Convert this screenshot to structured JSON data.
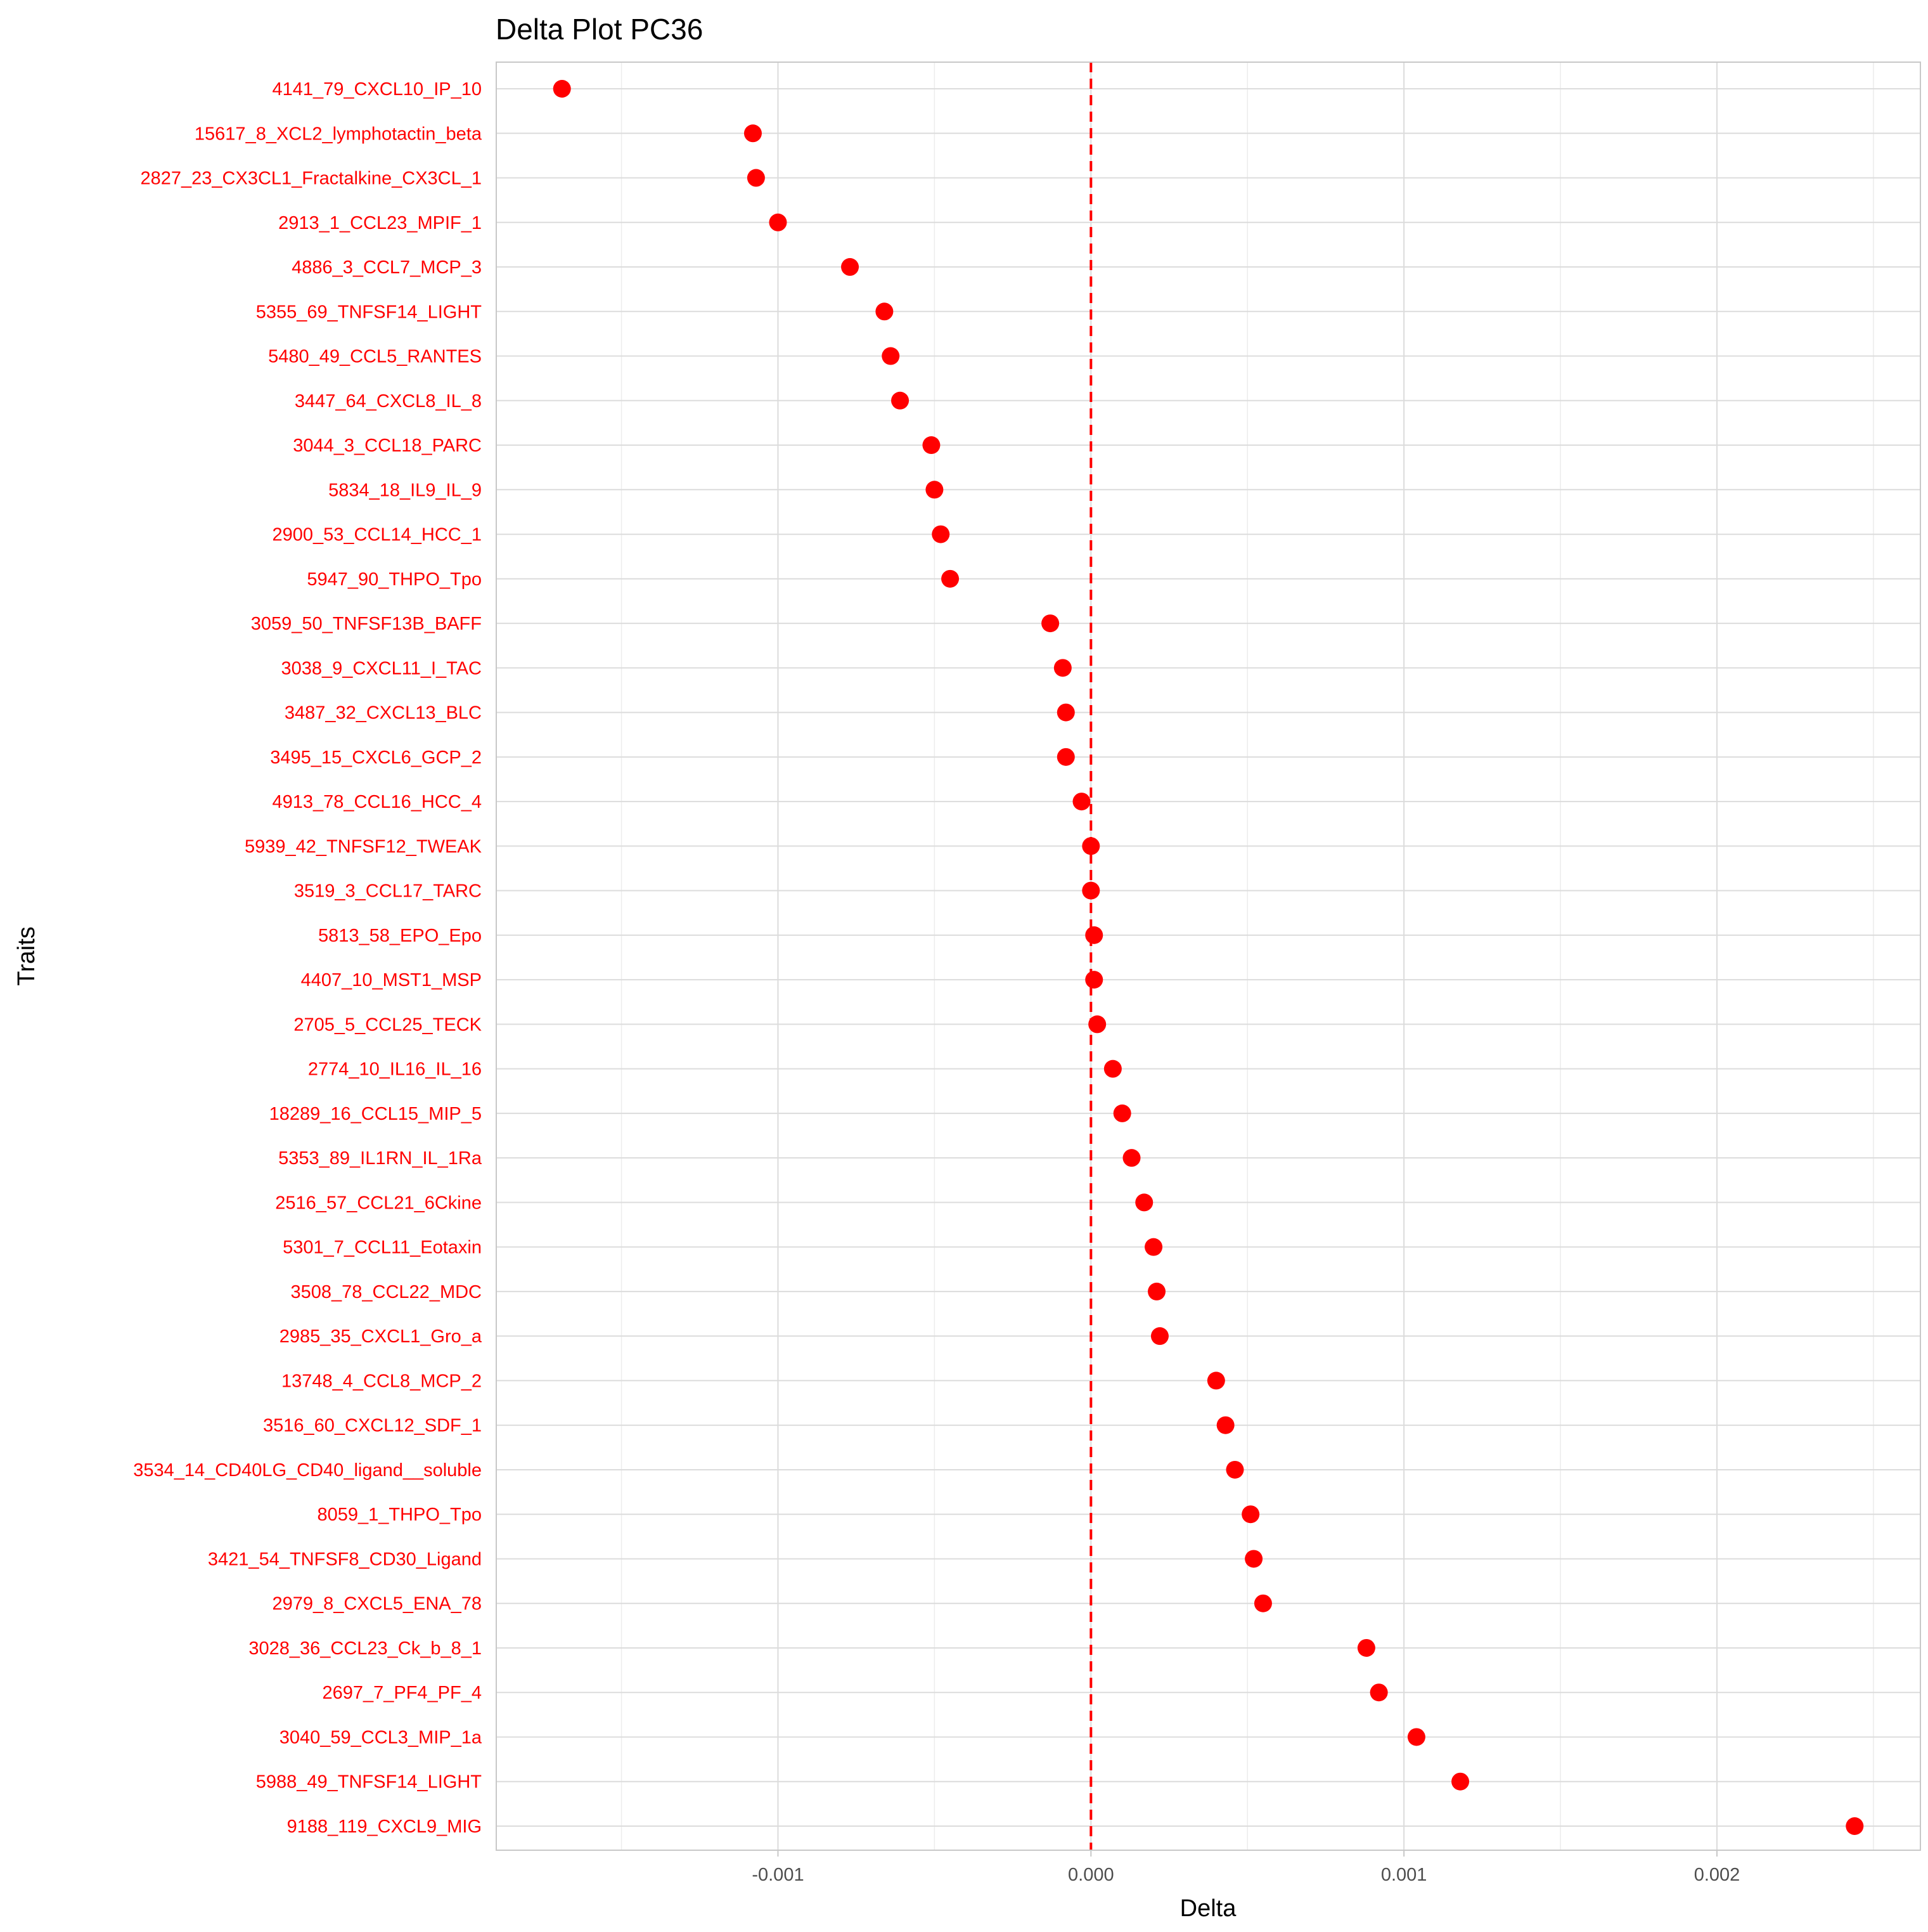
{
  "chart_data": {
    "type": "scatter",
    "title": "Delta Plot PC36",
    "xlabel": "Delta",
    "ylabel": "Traits",
    "xlim": [
      -0.0019,
      0.00265
    ],
    "xticks": [
      -0.001,
      0.0,
      0.001,
      0.002
    ],
    "xtick_labels": [
      "-0.001",
      "0.000",
      "0.001",
      "0.002"
    ],
    "reference_line": {
      "x": 0,
      "style": "dashed",
      "color": "#ff0000"
    },
    "point_color": "#ff0000",
    "label_color": "#ff0000",
    "grid": true,
    "points": [
      {
        "trait": "4141_79_CXCL10_IP_10",
        "delta": -0.00169
      },
      {
        "trait": "15617_8_XCL2_lymphotactin_beta",
        "delta": -0.00108
      },
      {
        "trait": "2827_23_CX3CL1_Fractalkine_CX3CL_1",
        "delta": -0.00107
      },
      {
        "trait": "2913_1_CCL23_MPIF_1",
        "delta": -0.001
      },
      {
        "trait": "4886_3_CCL7_MCP_3",
        "delta": -0.00077
      },
      {
        "trait": "5355_69_TNFSF14_LIGHT",
        "delta": -0.00066
      },
      {
        "trait": "5480_49_CCL5_RANTES",
        "delta": -0.00064
      },
      {
        "trait": "3447_64_CXCL8_IL_8",
        "delta": -0.00061
      },
      {
        "trait": "3044_3_CCL18_PARC",
        "delta": -0.00051
      },
      {
        "trait": "5834_18_IL9_IL_9",
        "delta": -0.0005
      },
      {
        "trait": "2900_53_CCL14_HCC_1",
        "delta": -0.00048
      },
      {
        "trait": "5947_90_THPO_Tpo",
        "delta": -0.00045
      },
      {
        "trait": "3059_50_TNFSF13B_BAFF",
        "delta": -0.00013
      },
      {
        "trait": "3038_9_CXCL11_I_TAC",
        "delta": -9e-05
      },
      {
        "trait": "3487_32_CXCL13_BLC",
        "delta": -8e-05
      },
      {
        "trait": "3495_15_CXCL6_GCP_2",
        "delta": -8e-05
      },
      {
        "trait": "4913_78_CCL16_HCC_4",
        "delta": -3e-05
      },
      {
        "trait": "5939_42_TNFSF12_TWEAK",
        "delta": 0.0
      },
      {
        "trait": "3519_3_CCL17_TARC",
        "delta": 0.0
      },
      {
        "trait": "5813_58_EPO_Epo",
        "delta": 1e-05
      },
      {
        "trait": "4407_10_MST1_MSP",
        "delta": 1e-05
      },
      {
        "trait": "2705_5_CCL25_TECK",
        "delta": 2e-05
      },
      {
        "trait": "2774_10_IL16_IL_16",
        "delta": 7e-05
      },
      {
        "trait": "18289_16_CCL15_MIP_5",
        "delta": 0.0001
      },
      {
        "trait": "5353_89_IL1RN_IL_1Ra",
        "delta": 0.00013
      },
      {
        "trait": "2516_57_CCL21_6Ckine",
        "delta": 0.00017
      },
      {
        "trait": "5301_7_CCL11_Eotaxin",
        "delta": 0.0002
      },
      {
        "trait": "3508_78_CCL22_MDC",
        "delta": 0.00021
      },
      {
        "trait": "2985_35_CXCL1_Gro_a",
        "delta": 0.00022
      },
      {
        "trait": "13748_4_CCL8_MCP_2",
        "delta": 0.0004
      },
      {
        "trait": "3516_60_CXCL12_SDF_1",
        "delta": 0.00043
      },
      {
        "trait": "3534_14_CD40LG_CD40_ligand__soluble",
        "delta": 0.00046
      },
      {
        "trait": "8059_1_THPO_Tpo",
        "delta": 0.00051
      },
      {
        "trait": "3421_54_TNFSF8_CD30_Ligand",
        "delta": 0.00052
      },
      {
        "trait": "2979_8_CXCL5_ENA_78",
        "delta": 0.00055
      },
      {
        "trait": "3028_36_CCL23_Ck_b_8_1",
        "delta": 0.00088
      },
      {
        "trait": "2697_7_PF4_PF_4",
        "delta": 0.00092
      },
      {
        "trait": "3040_59_CCL3_MIP_1a",
        "delta": 0.00104
      },
      {
        "trait": "5988_49_TNFSF14_LIGHT",
        "delta": 0.00118
      },
      {
        "trait": "9188_119_CXCL9_MIG",
        "delta": 0.00244
      }
    ]
  }
}
